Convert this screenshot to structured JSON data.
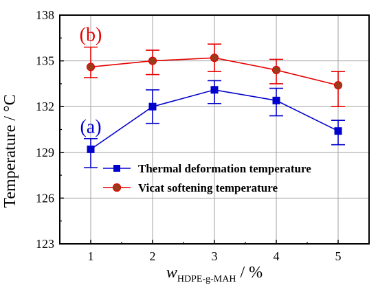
{
  "chart_data": {
    "type": "line",
    "xlabel": {
      "base": "w",
      "subscript": "HDPE-g-MAH",
      "suffix": " / %"
    },
    "ylabel": "Temperature / °C",
    "xlim": [
      0.5,
      5.5
    ],
    "ylim": [
      123,
      138
    ],
    "xticks": [
      1,
      2,
      3,
      4,
      5
    ],
    "yticks": [
      123,
      126,
      129,
      132,
      135,
      138
    ],
    "grid": true,
    "legend_position": "lower-right",
    "x": [
      1,
      2,
      3,
      4,
      5
    ],
    "series": [
      {
        "name": "Thermal deformation temperature",
        "label": "(a)",
        "color": "#0000cc",
        "marker": "square",
        "values": [
          129.2,
          132.0,
          133.1,
          132.4,
          130.4
        ],
        "error_low": [
          128.0,
          130.9,
          132.2,
          131.4,
          129.5
        ],
        "error_high": [
          129.9,
          133.1,
          133.7,
          133.2,
          131.1
        ]
      },
      {
        "name": "Vicat softening temperature",
        "label": "(b)",
        "color": "#e60000",
        "marker": "circle",
        "marker_fill": "#9a3b1b",
        "values": [
          134.6,
          135.0,
          135.2,
          134.4,
          133.4
        ],
        "error_low": [
          133.9,
          134.1,
          134.3,
          133.5,
          132.0
        ],
        "error_high": [
          135.9,
          135.7,
          136.1,
          135.1,
          134.3
        ]
      }
    ]
  }
}
